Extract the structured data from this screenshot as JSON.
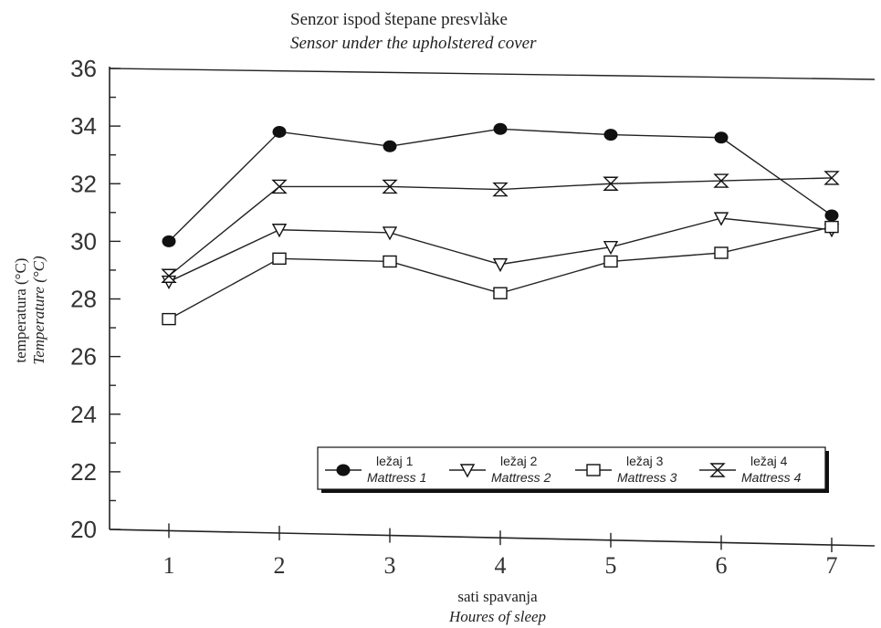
{
  "chart_data": {
    "type": "line",
    "title": "Senzor ispod štepane presvlàke",
    "subtitle": "Sensor under the upholstered cover",
    "xlabel": "sati spavanja",
    "xlabel_en": "Houres of sleep",
    "ylabel": "temperatura (°C)",
    "ylabel_en": "Temperature (°C)",
    "x": [
      1,
      2,
      3,
      4,
      5,
      6,
      7
    ],
    "x_ticks": [
      "1",
      "2",
      "3",
      "4",
      "5",
      "6",
      "7"
    ],
    "y_ticks": [
      "20",
      "22",
      "24",
      "26",
      "28",
      "30",
      "32",
      "34",
      "36"
    ],
    "ylim": [
      20,
      36
    ],
    "grid": false,
    "legend_position": "lower-right",
    "series": [
      {
        "name": "ležaj 1",
        "name_en": "Mattress 1",
        "marker": "filled-circle",
        "values": [
          30.0,
          33.8,
          33.3,
          33.9,
          33.7,
          33.6,
          30.9
        ]
      },
      {
        "name": "ležaj 2",
        "name_en": "Mattress 2",
        "marker": "triangle-down",
        "values": [
          28.6,
          30.4,
          30.3,
          29.2,
          29.8,
          30.8,
          30.4
        ]
      },
      {
        "name": "ležaj 3",
        "name_en": "Mattress 3",
        "marker": "square",
        "values": [
          27.3,
          29.4,
          29.3,
          28.2,
          29.3,
          29.6,
          30.5
        ]
      },
      {
        "name": "ležaj 4",
        "name_en": "Mattress 4",
        "marker": "hourglass",
        "values": [
          28.8,
          31.9,
          31.9,
          31.8,
          32.0,
          32.1,
          32.2
        ]
      }
    ]
  }
}
